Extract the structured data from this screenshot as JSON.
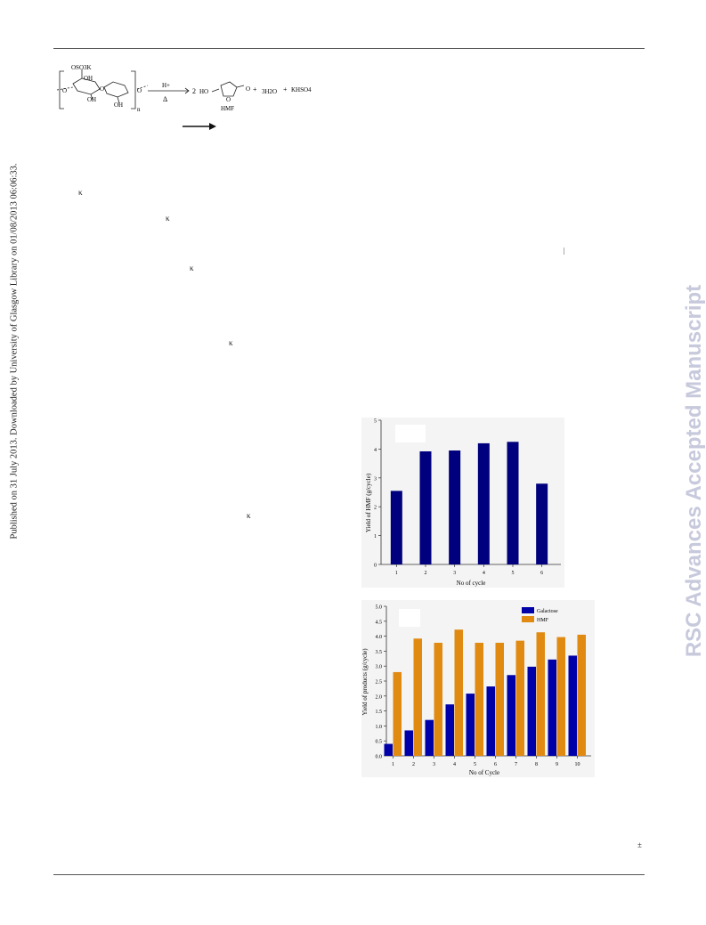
{
  "side_note": "Published on 31 July 2013. Downloaded by University of Glasgow Library on 01/08/2013 06:06:33.",
  "watermark": "RSC Advances Accepted Manuscript",
  "kappa_marks": [
    "κ",
    "κ",
    "κ",
    "κ",
    "κ"
  ],
  "pm_mark": "±",
  "pipe_mark": "|",
  "scheme": {
    "substituent_top": "OSO3K",
    "oh1": "OH",
    "oh2": "OH",
    "oh3": "OH",
    "o1": "O",
    "o2": "O",
    "o3": "O",
    "n": "n",
    "catalyst": "H+",
    "heat": "Δ",
    "coef": "2",
    "ho": "HO",
    "hmf_o": "O",
    "ald_o": "O",
    "plus1": "+",
    "water": "3H2O",
    "plus2": "+",
    "salt": "KHSO4",
    "hmf_label": "HMF"
  },
  "chart_data": [
    {
      "type": "bar",
      "categories": [
        "1",
        "2",
        "3",
        "4",
        "5",
        "6"
      ],
      "values": [
        2.55,
        3.92,
        3.95,
        4.2,
        4.25,
        2.8
      ],
      "ylim": [
        0,
        5
      ],
      "yticks": [
        "0",
        "1",
        "2",
        "3",
        "4",
        "5"
      ],
      "xlabel": "No of cycle",
      "ylabel": "Yield of HMF (g/cycle)",
      "color": "#00007f"
    },
    {
      "type": "bar",
      "categories": [
        "1",
        "2",
        "3",
        "4",
        "5",
        "6",
        "7",
        "8",
        "9",
        "10"
      ],
      "series": [
        {
          "name": "Galactose",
          "values": [
            0.4,
            0.85,
            1.2,
            1.72,
            2.08,
            2.32,
            2.7,
            2.98,
            3.22,
            3.35
          ],
          "color": "#0000a8"
        },
        {
          "name": "HMF",
          "values": [
            2.8,
            3.92,
            3.78,
            4.22,
            3.78,
            3.78,
            3.85,
            4.13,
            3.97,
            4.05
          ],
          "color": "#e08a12"
        }
      ],
      "ylim": [
        0,
        5
      ],
      "yticks": [
        "0.0",
        "0.5",
        "1.0",
        "1.5",
        "2.0",
        "2.5",
        "3.0",
        "3.5",
        "4.0",
        "4.5",
        "5.0"
      ],
      "xlabel": "No of Cycle",
      "ylabel": "Yield of products (g/cycle)",
      "legend": "top-right"
    }
  ]
}
